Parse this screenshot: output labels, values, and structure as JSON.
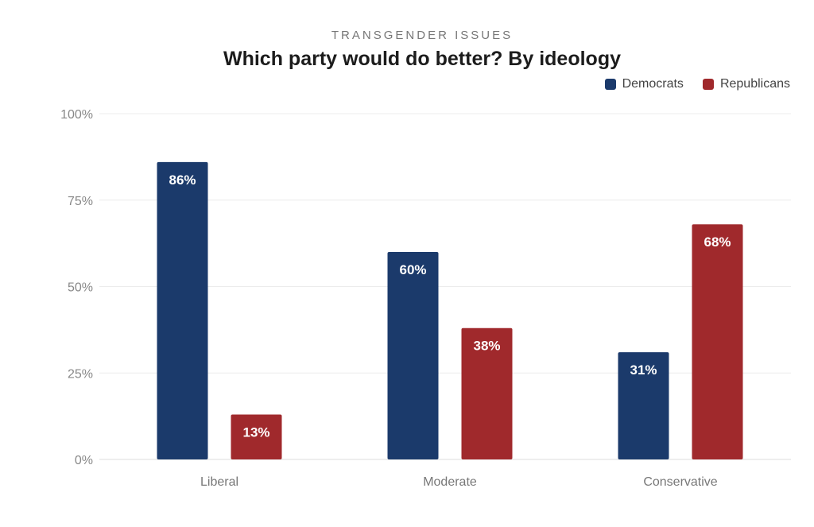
{
  "header": {
    "subtitle": "TRANSGENDER ISSUES",
    "title": "Which party would do better? By ideology"
  },
  "legend": [
    {
      "label": "Democrats",
      "color": "#1b3a6b"
    },
    {
      "label": "Republicans",
      "color": "#a0292c"
    }
  ],
  "chart_data": {
    "type": "bar",
    "title": "Which party would do better? By ideology",
    "subtitle": "TRANSGENDER ISSUES",
    "xlabel": "",
    "ylabel": "",
    "categories": [
      "Liberal",
      "Moderate",
      "Conservative"
    ],
    "series": [
      {
        "name": "Democrats",
        "color": "#1b3a6b",
        "values": [
          86,
          60,
          31
        ]
      },
      {
        "name": "Republicans",
        "color": "#a0292c",
        "values": [
          13,
          38,
          68
        ]
      }
    ],
    "ylim": [
      0,
      100
    ],
    "yticks": [
      0,
      25,
      50,
      75,
      100
    ],
    "ytick_labels": [
      "0%",
      "25%",
      "50%",
      "75%",
      "100%"
    ],
    "value_suffix": "%",
    "grid": true,
    "legend_position": "top-right"
  }
}
